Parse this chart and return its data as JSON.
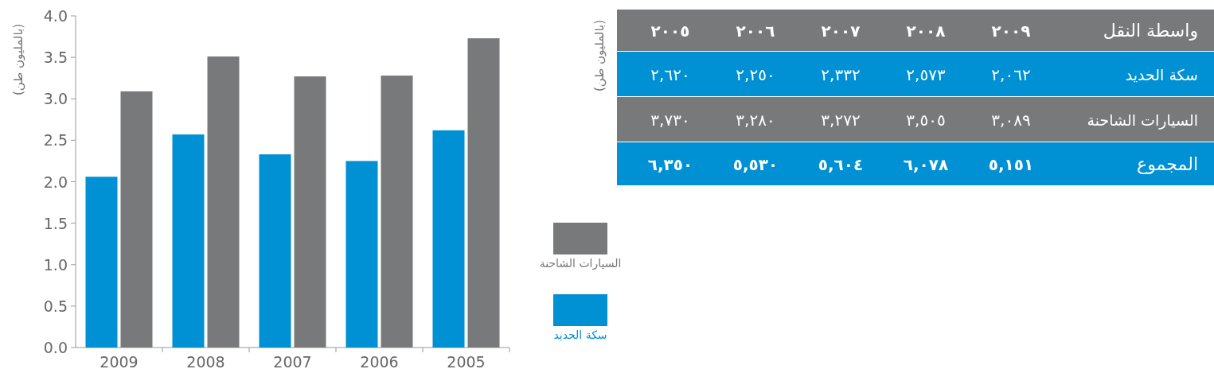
{
  "chart_data": {
    "type": "bar",
    "ylabel": "(بالمليون طن)",
    "categories": [
      "2009",
      "2008",
      "2007",
      "2006",
      "2005"
    ],
    "series": [
      {
        "name": "سكة الحديد",
        "color": "#0090d4",
        "values": [
          2.06,
          2.57,
          2.33,
          2.25,
          2.62
        ]
      },
      {
        "name": "السيارات الشاحنة",
        "color": "#77797b",
        "values": [
          3.09,
          3.51,
          3.27,
          3.28,
          3.73
        ]
      }
    ],
    "ylim": [
      0,
      4
    ],
    "yticks": [
      {
        "value": 0,
        "label": "0.0"
      },
      {
        "value": 0.5,
        "label": "0.5"
      },
      {
        "value": 1,
        "label": "1.0"
      },
      {
        "value": 1.5,
        "label": "1.5"
      },
      {
        "value": 2,
        "label": "2.0"
      },
      {
        "value": 2.5,
        "label": "2.5"
      },
      {
        "value": 3,
        "label": "3.0"
      },
      {
        "value": 3.5,
        "label": "3.5"
      },
      {
        "value": 4,
        "label": "4.0"
      }
    ],
    "legend": "right",
    "annotations": [
      "واسطة النقل",
      "٢٠٠٩",
      "٢٠٠٨",
      "٢٠٠٧",
      "٢٠٠٦",
      "٢٠٠٥",
      "٢,٠٦٢",
      "٢,٥٧٣",
      "٢,٣٣٢",
      "٢,٢٥٠",
      "٢,٦٢٠",
      "٣,٠٨٩",
      "٣,٥٠٥",
      "٣,٢٧٢",
      "٣,٢٨٠",
      "٣,٧٣٠",
      "المجموع",
      "٥,١٥١",
      "٦,٠٧٨",
      "٥,٦٠٤",
      "٥,٥٣٠",
      "٦,٣٥٠",
      "(بالمليون طن)"
    ]
  }
}
